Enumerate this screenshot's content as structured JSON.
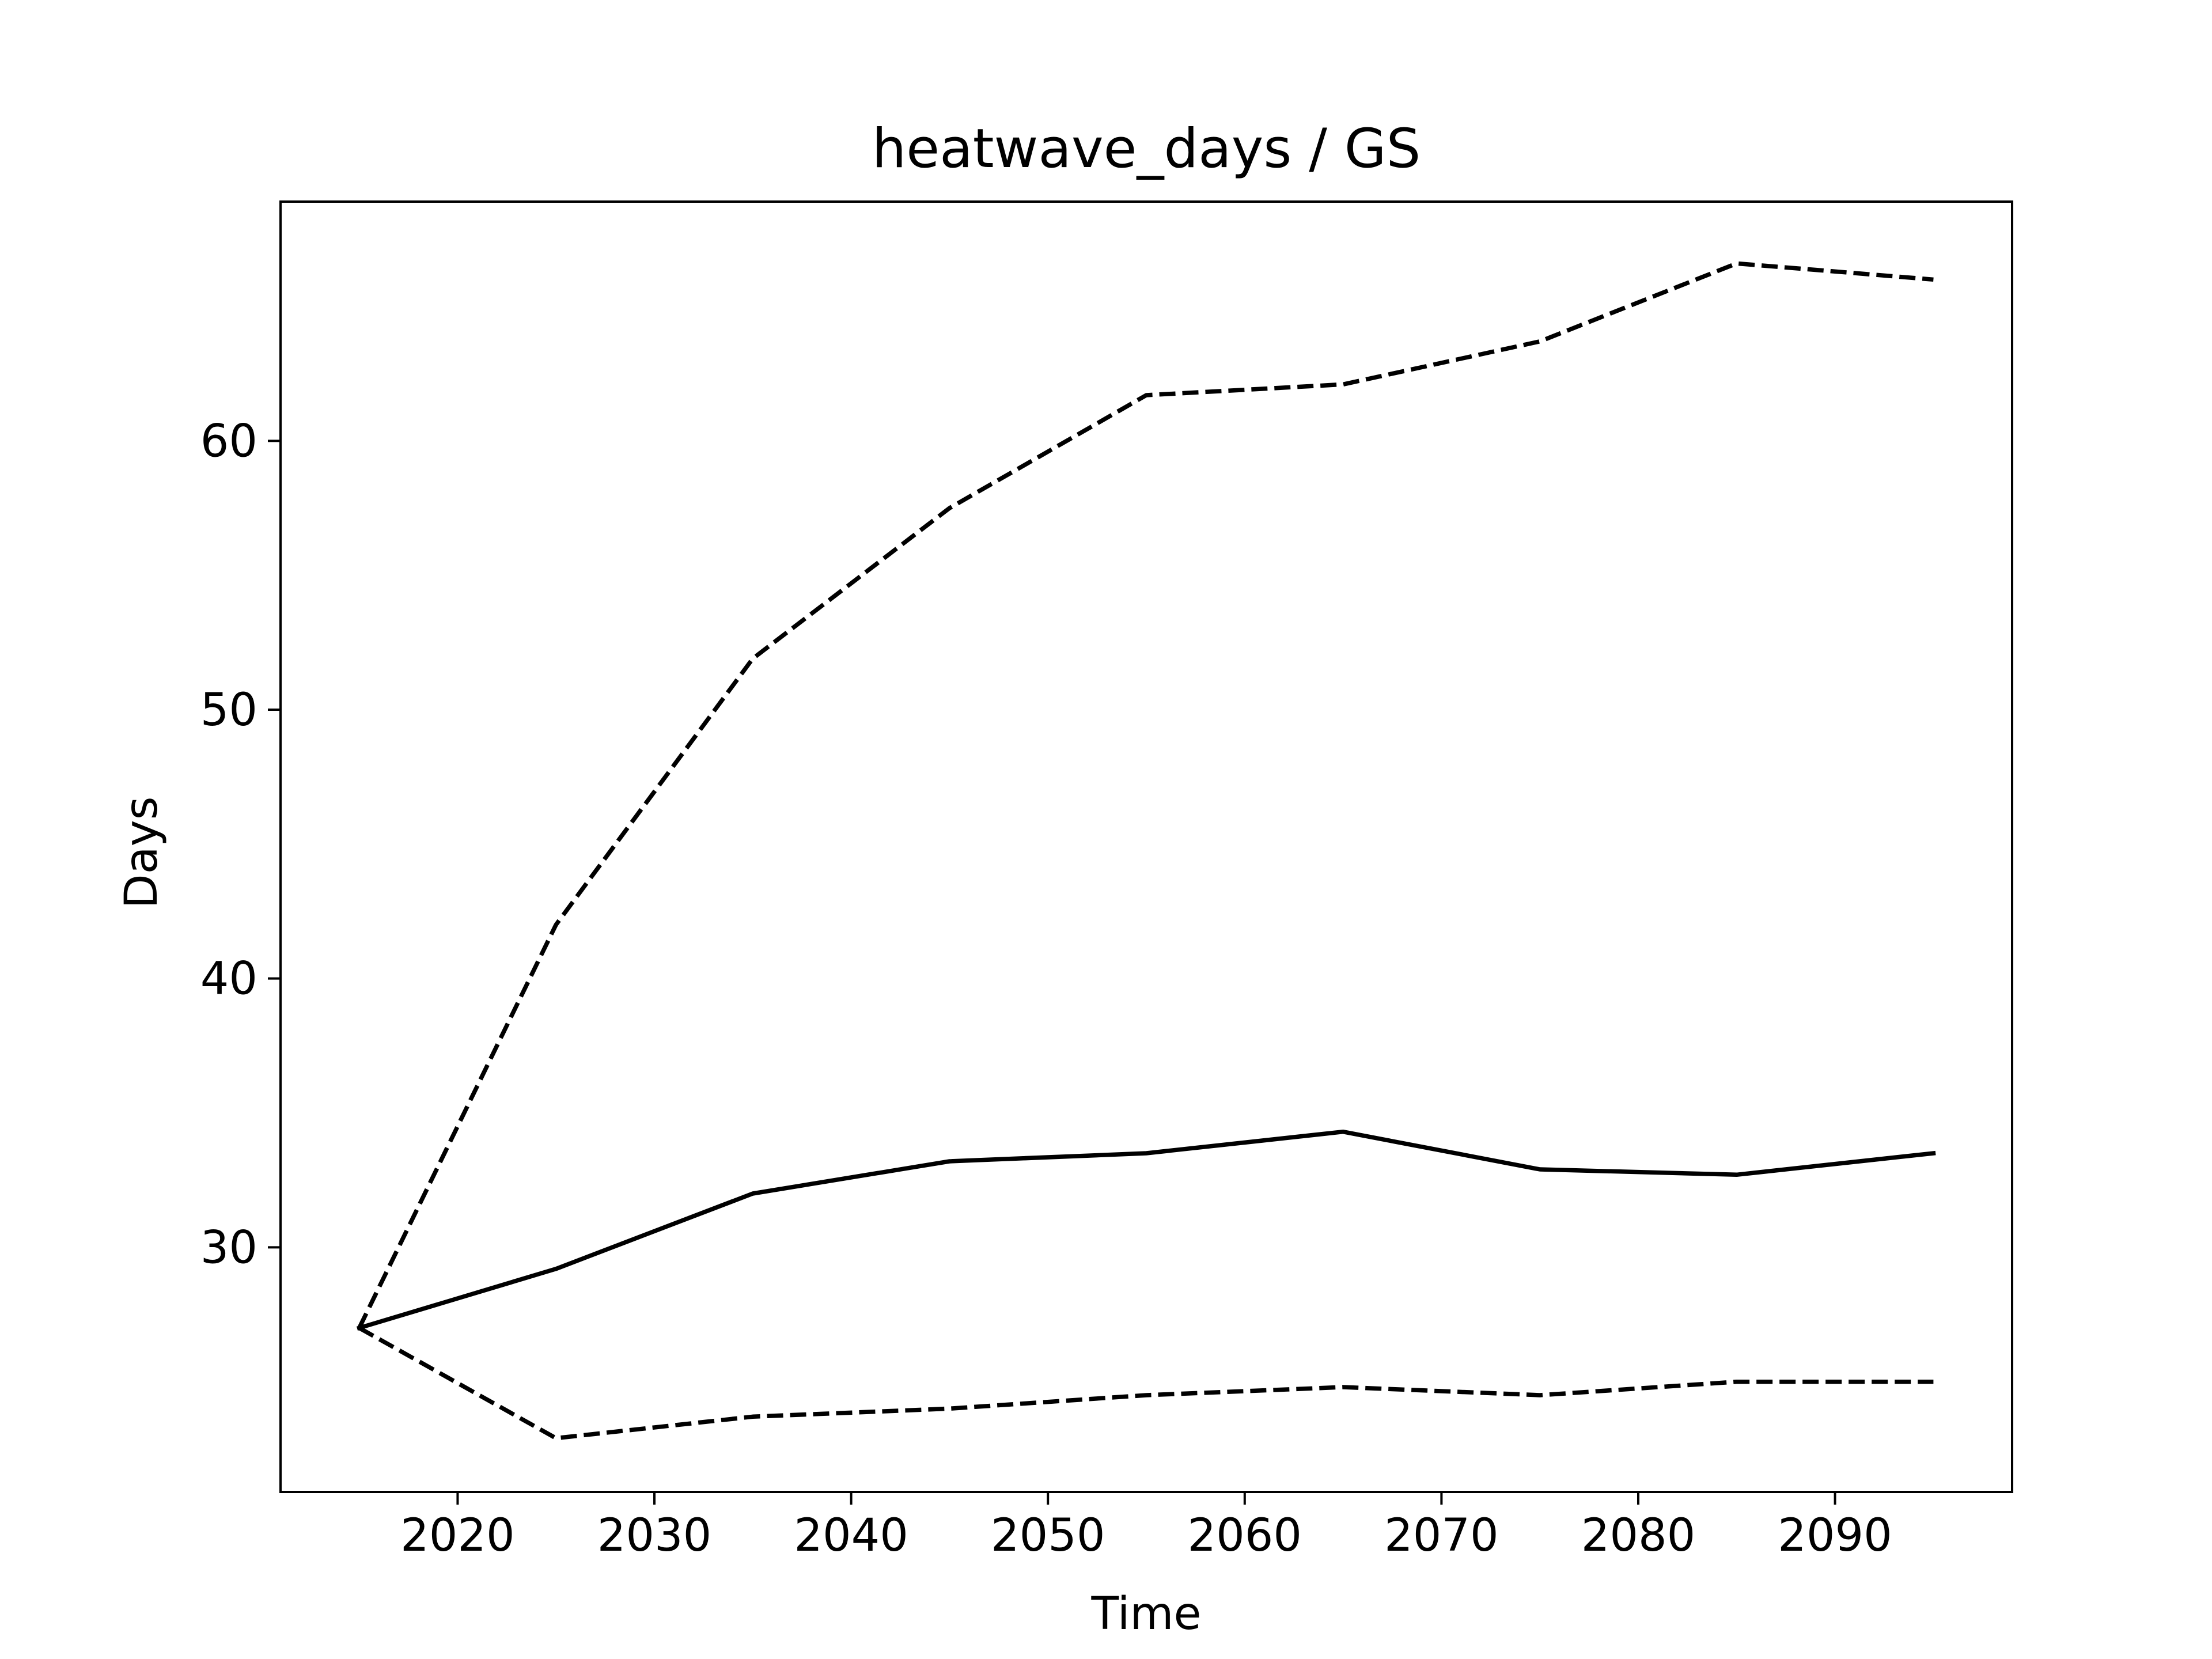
{
  "chart_data": {
    "type": "line",
    "title": "heatwave_days / GS",
    "xlabel": "Time",
    "ylabel": "Days",
    "xlim": [
      2011,
      2099
    ],
    "ylim": [
      20.9,
      68.9
    ],
    "xticks": [
      2020,
      2030,
      2040,
      2050,
      2060,
      2070,
      2080,
      2090
    ],
    "yticks": [
      30,
      40,
      50,
      60
    ],
    "grid": false,
    "legend": "none",
    "x": [
      2015,
      2025,
      2035,
      2045,
      2055,
      2065,
      2075,
      2085,
      2095
    ],
    "series": [
      {
        "line_style": "solid",
        "color": "#000000",
        "values": [
          27.0,
          29.2,
          32.0,
          33.2,
          33.5,
          34.3,
          32.9,
          32.7,
          33.5
        ]
      },
      {
        "line_style": "dashed",
        "color": "#000000",
        "values": [
          27.0,
          42.0,
          51.9,
          57.5,
          61.7,
          62.1,
          63.7,
          66.6,
          66.0
        ]
      },
      {
        "line_style": "dashed",
        "color": "#000000",
        "values": [
          27.0,
          22.9,
          23.7,
          24.0,
          24.5,
          24.8,
          24.5,
          25.0,
          25.0
        ]
      }
    ]
  }
}
